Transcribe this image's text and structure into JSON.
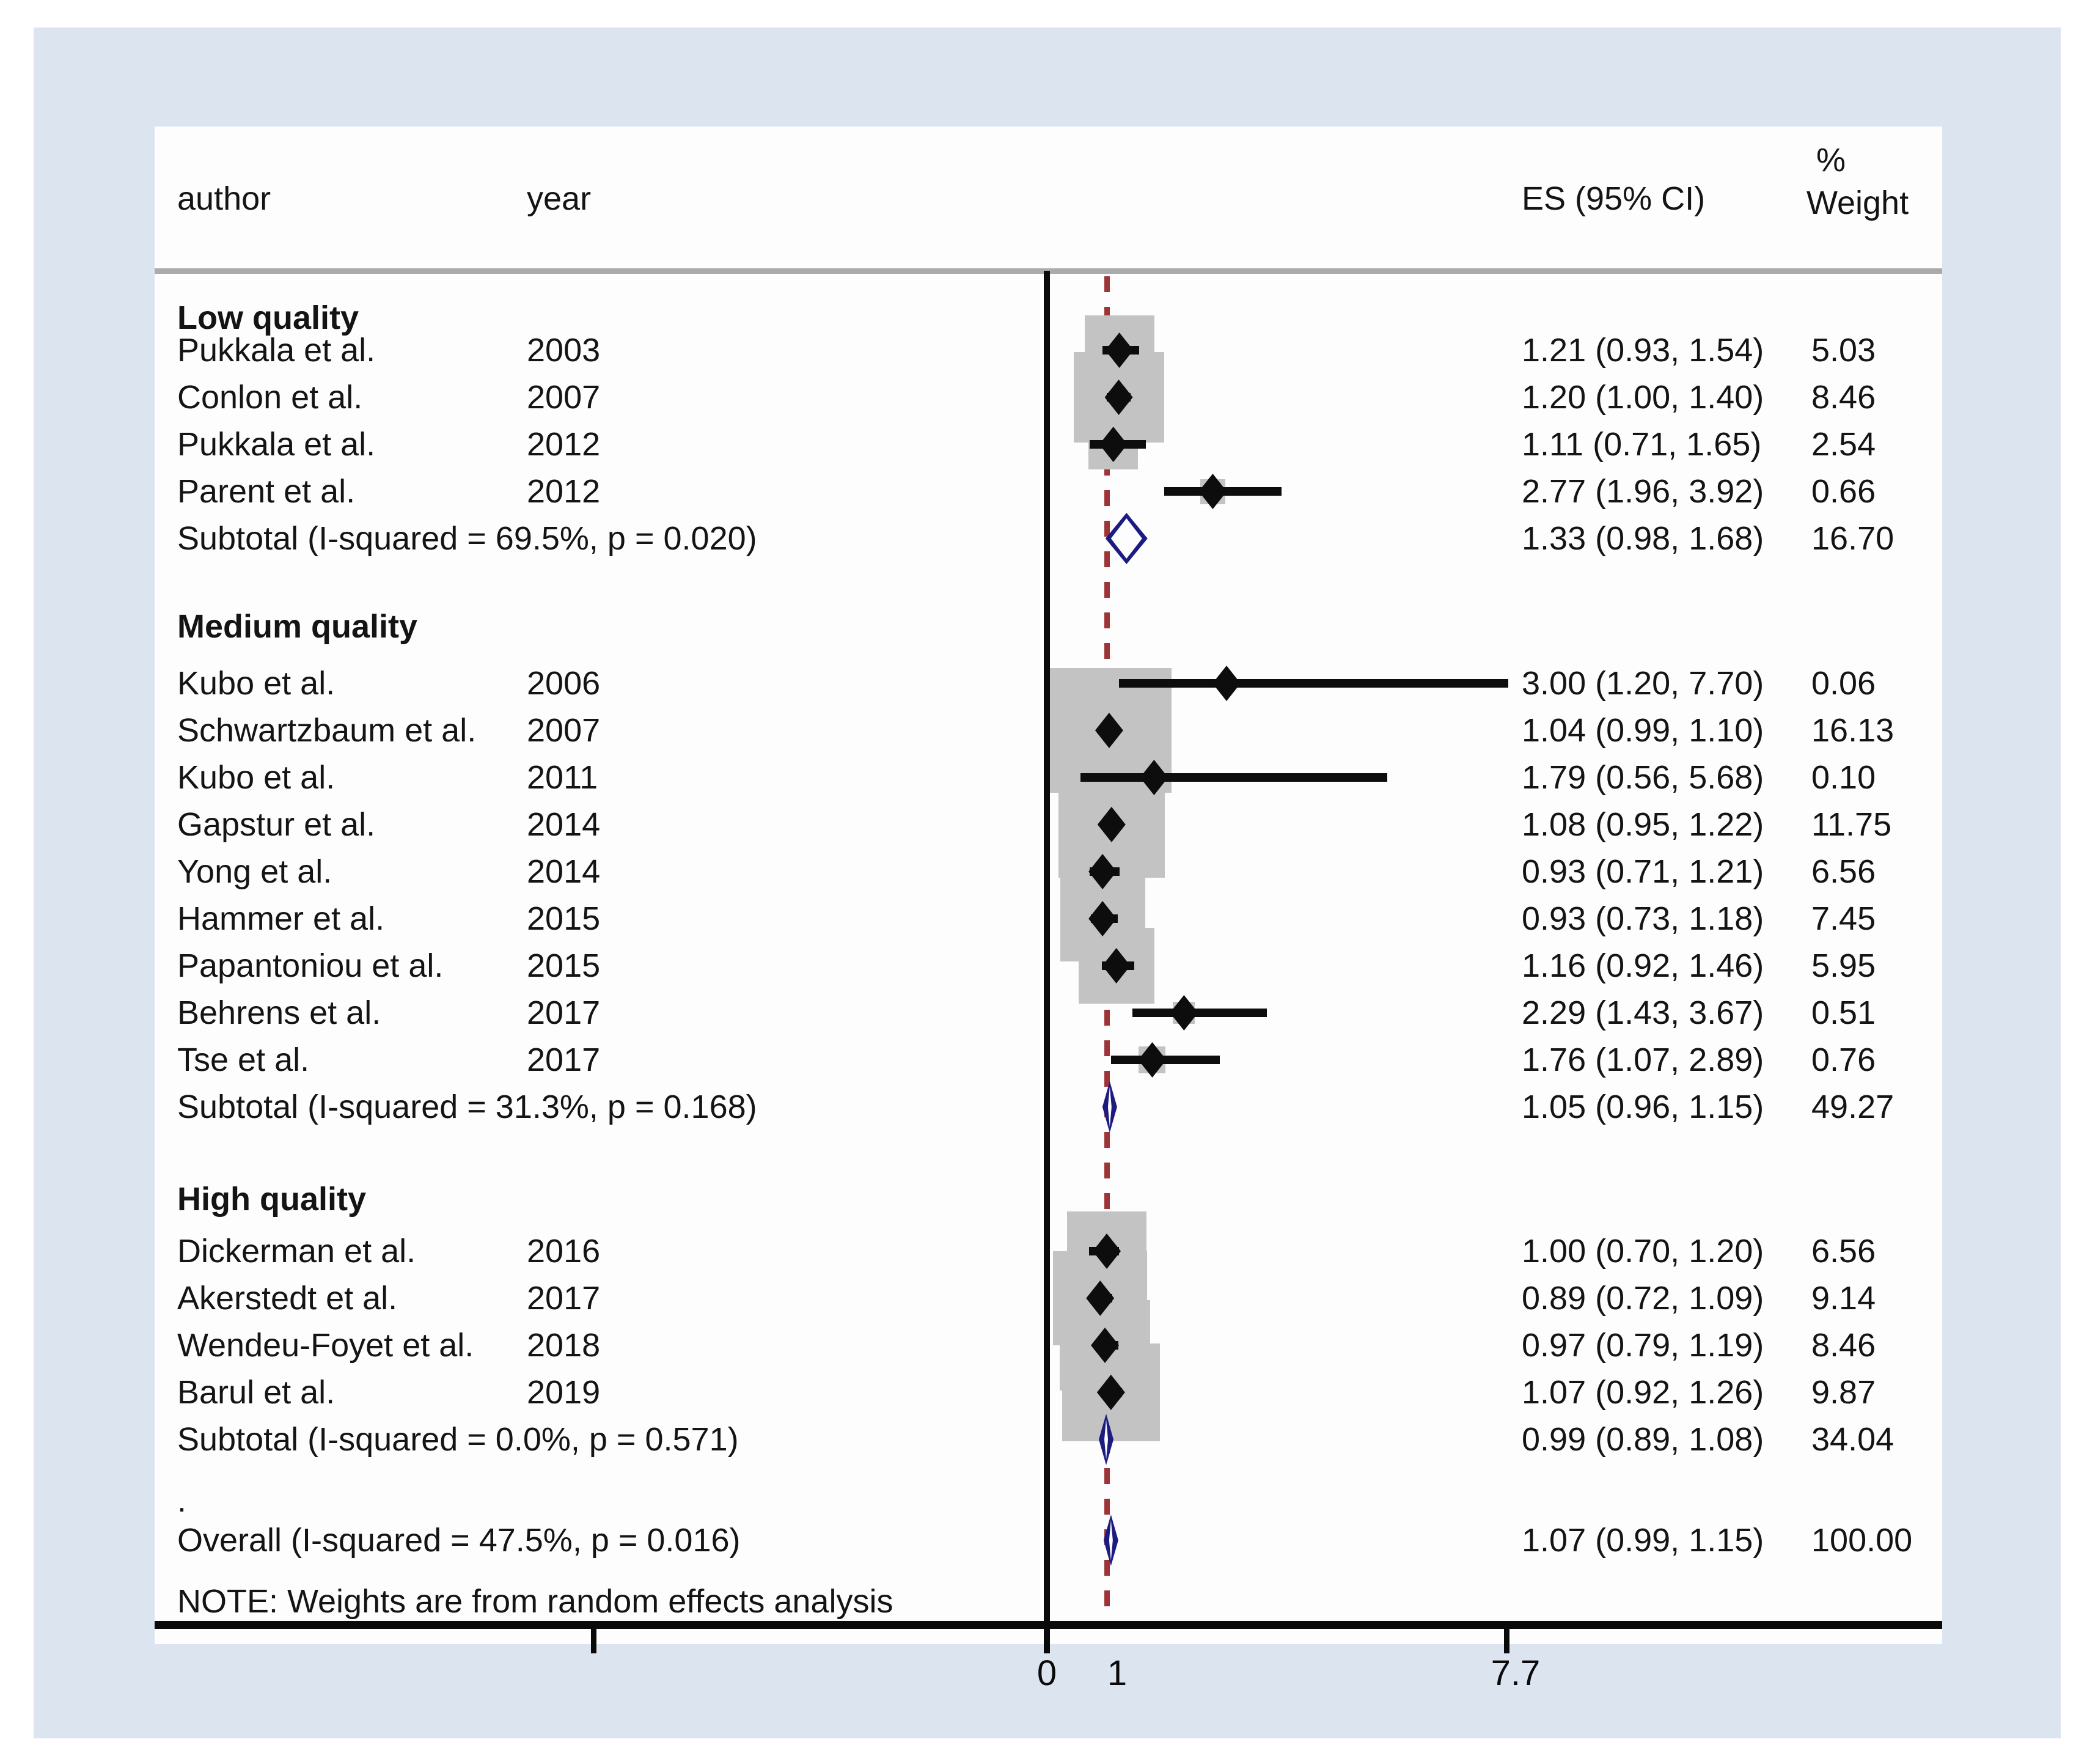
{
  "header": {
    "author": "author",
    "year": "year",
    "es": "ES (95% CI)",
    "pct": "%",
    "weight": "Weight"
  },
  "misc": {
    "dot_row": ".",
    "note": "NOTE: Weights are from random effects analysis"
  },
  "colors": {
    "page_background": "#ffffff",
    "panel_background": "#dce4f0",
    "plot_background": "#fdfdfe",
    "weight_box": "#c3c3c3",
    "study_diamond": "#0d0d0d",
    "pooled_diamond_outline": "#1c1c80",
    "null_line_dashed": "#9c3438",
    "axis_line": "#0a0a0a",
    "header_separator": "#ababab",
    "text": "#141414"
  },
  "chart_data": {
    "type": "table",
    "title": "Forest plot of effect sizes by study quality",
    "x_axis": {
      "scale": "linear",
      "tick_labels": [
        "0",
        "1",
        "7.7"
      ],
      "tick_values": [
        0,
        1,
        7.7
      ],
      "unlabeled_tick_value": -7.7,
      "null_line_value": 1,
      "grid": false
    },
    "columns": [
      "author",
      "year",
      "ES (95% CI)",
      "% Weight"
    ],
    "groups": [
      {
        "title": "Low quality",
        "studies": [
          {
            "author": "Pukkala et al.",
            "year": "2003",
            "es": 1.21,
            "lo": 0.93,
            "hi": 1.54,
            "weight": 5.03,
            "es_text": "1.21 (0.93, 1.54)",
            "weight_text": "5.03"
          },
          {
            "author": "Conlon et al.",
            "year": "2007",
            "es": 1.2,
            "lo": 1.0,
            "hi": 1.4,
            "weight": 8.46,
            "es_text": "1.20 (1.00, 1.40)",
            "weight_text": "8.46"
          },
          {
            "author": "Pukkala et al.",
            "year": "2012",
            "es": 1.11,
            "lo": 0.71,
            "hi": 1.65,
            "weight": 2.54,
            "es_text": "1.11 (0.71, 1.65)",
            "weight_text": "2.54"
          },
          {
            "author": "Parent et al.",
            "year": "2012",
            "es": 2.77,
            "lo": 1.96,
            "hi": 3.92,
            "weight": 0.66,
            "es_text": "2.77 (1.96, 3.92)",
            "weight_text": "0.66"
          }
        ],
        "subtotal": {
          "label": "Subtotal  (I-squared = 69.5%, p = 0.020)",
          "es": 1.33,
          "lo": 0.98,
          "hi": 1.68,
          "es_text": "1.33 (0.98, 1.68)",
          "weight_text": "16.70"
        }
      },
      {
        "title": "Medium quality",
        "studies": [
          {
            "author": "Kubo et al.",
            "year": "2006",
            "es": 3.0,
            "lo": 1.2,
            "hi": 7.7,
            "weight": 0.06,
            "es_text": "3.00 (1.20, 7.70)",
            "weight_text": "0.06"
          },
          {
            "author": "Schwartzbaum et al.",
            "year": "2007",
            "es": 1.04,
            "lo": 0.99,
            "hi": 1.1,
            "weight": 16.13,
            "es_text": "1.04 (0.99, 1.10)",
            "weight_text": "16.13"
          },
          {
            "author": "Kubo et al.",
            "year": "2011",
            "es": 1.79,
            "lo": 0.56,
            "hi": 5.68,
            "weight": 0.1,
            "es_text": "1.79 (0.56, 5.68)",
            "weight_text": "0.10"
          },
          {
            "author": "Gapstur et al.",
            "year": "2014",
            "es": 1.08,
            "lo": 0.95,
            "hi": 1.22,
            "weight": 11.75,
            "es_text": "1.08 (0.95, 1.22)",
            "weight_text": "11.75"
          },
          {
            "author": "Yong et al.",
            "year": "2014",
            "es": 0.93,
            "lo": 0.71,
            "hi": 1.21,
            "weight": 6.56,
            "es_text": "0.93 (0.71, 1.21)",
            "weight_text": "6.56"
          },
          {
            "author": "Hammer et al.",
            "year": "2015",
            "es": 0.93,
            "lo": 0.73,
            "hi": 1.18,
            "weight": 7.45,
            "es_text": "0.93 (0.73, 1.18)",
            "weight_text": "7.45"
          },
          {
            "author": "Papantoniou et al.",
            "year": "2015",
            "es": 1.16,
            "lo": 0.92,
            "hi": 1.46,
            "weight": 5.95,
            "es_text": "1.16 (0.92, 1.46)",
            "weight_text": "5.95"
          },
          {
            "author": "Behrens et al.",
            "year": "2017",
            "es": 2.29,
            "lo": 1.43,
            "hi": 3.67,
            "weight": 0.51,
            "es_text": "2.29 (1.43, 3.67)",
            "weight_text": "0.51"
          },
          {
            "author": "Tse et al.",
            "year": "2017",
            "es": 1.76,
            "lo": 1.07,
            "hi": 2.89,
            "weight": 0.76,
            "es_text": "1.76 (1.07, 2.89)",
            "weight_text": "0.76"
          }
        ],
        "subtotal": {
          "label": "Subtotal  (I-squared = 31.3%, p = 0.168)",
          "es": 1.05,
          "lo": 0.96,
          "hi": 1.15,
          "es_text": "1.05 (0.96, 1.15)",
          "weight_text": "49.27"
        }
      },
      {
        "title": "High quality",
        "studies": [
          {
            "author": "Dickerman et al.",
            "year": "2016",
            "es": 1.0,
            "lo": 0.7,
            "hi": 1.2,
            "weight": 6.56,
            "es_text": "1.00 (0.70, 1.20)",
            "weight_text": "6.56"
          },
          {
            "author": "Akerstedt et al.",
            "year": "2017",
            "es": 0.89,
            "lo": 0.72,
            "hi": 1.09,
            "weight": 9.14,
            "es_text": "0.89 (0.72, 1.09)",
            "weight_text": "9.14"
          },
          {
            "author": "Wendeu-Foyet et al.",
            "year": "2018",
            "es": 0.97,
            "lo": 0.79,
            "hi": 1.19,
            "weight": 8.46,
            "es_text": "0.97 (0.79, 1.19)",
            "weight_text": "8.46"
          },
          {
            "author": "Barul et al.",
            "year": "2019",
            "es": 1.07,
            "lo": 0.92,
            "hi": 1.26,
            "weight": 9.87,
            "es_text": "1.07 (0.92, 1.26)",
            "weight_text": "9.87"
          }
        ],
        "subtotal": {
          "label": "Subtotal  (I-squared = 0.0%, p = 0.571)",
          "es": 0.99,
          "lo": 0.89,
          "hi": 1.08,
          "es_text": "0.99 (0.89, 1.08)",
          "weight_text": "34.04"
        }
      }
    ],
    "overall": {
      "label": "Overall  (I-squared = 47.5%, p = 0.016)",
      "es": 1.07,
      "lo": 0.99,
      "hi": 1.15,
      "es_text": "1.07 (0.99, 1.15)",
      "weight_text": "100.00"
    },
    "note": "NOTE: Weights are from random effects analysis"
  }
}
